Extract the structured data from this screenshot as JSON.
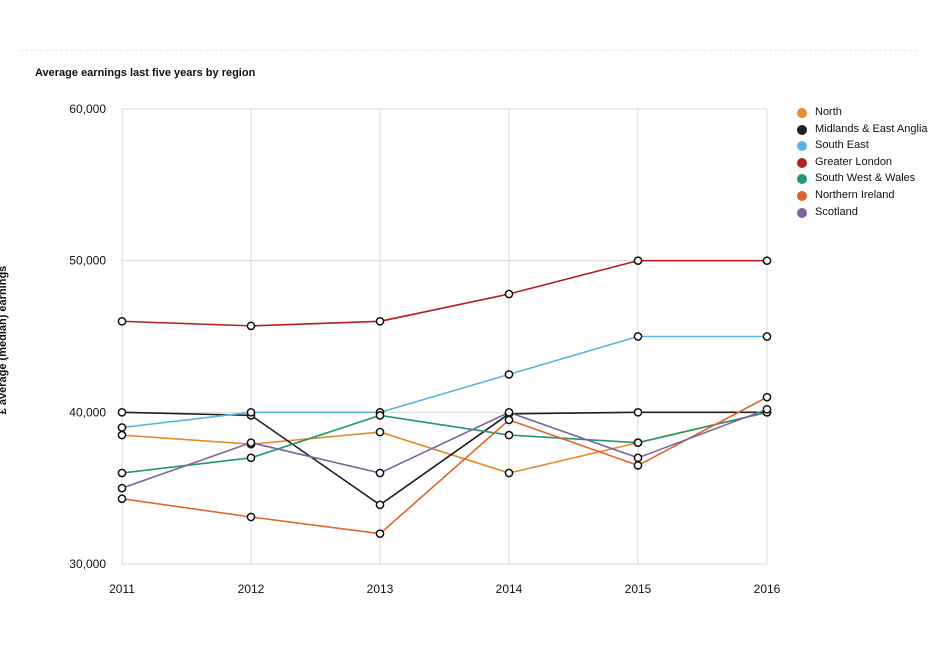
{
  "chart_data": {
    "type": "line",
    "title": "Average earnings last five years by region",
    "ylabel": "£ average (median) earnings",
    "xlabel": "",
    "x": [
      2011,
      2012,
      2013,
      2014,
      2015,
      2016
    ],
    "x_tick_labels": [
      "2011",
      "2012",
      "2013",
      "2014",
      "2015",
      "2016"
    ],
    "ylim": [
      30000,
      60000
    ],
    "y_ticks": [
      30000,
      40000,
      50000,
      60000
    ],
    "y_tick_labels": [
      "30,000",
      "40,000",
      "50,000",
      "60,000"
    ],
    "grid": true,
    "legend_position": "right",
    "series": [
      {
        "name": "North",
        "color": "#e8892b",
        "values": [
          38500,
          37900,
          38700,
          36000,
          38000,
          40000
        ]
      },
      {
        "name": "Midlands & East Anglia",
        "color": "#231f1c",
        "values": [
          40000,
          39800,
          33900,
          39900,
          40000,
          40000
        ]
      },
      {
        "name": "South East",
        "color": "#57b5e0",
        "values": [
          39000,
          40000,
          40000,
          42500,
          45000,
          45000
        ]
      },
      {
        "name": "Greater London",
        "color": "#b3201f",
        "values": [
          46000,
          45700,
          46000,
          47800,
          50000,
          50000
        ]
      },
      {
        "name": "South West & Wales",
        "color": "#1f9a68",
        "values": [
          36000,
          37000,
          39800,
          38500,
          38000,
          40000
        ]
      },
      {
        "name": "Northern Ireland",
        "color": "#e3622a",
        "values": [
          34300,
          33100,
          32000,
          39500,
          36500,
          41000
        ]
      },
      {
        "name": "Scotland",
        "color": "#7d64a0",
        "values": [
          35000,
          38000,
          36000,
          40000,
          37000,
          40200
        ]
      }
    ]
  }
}
